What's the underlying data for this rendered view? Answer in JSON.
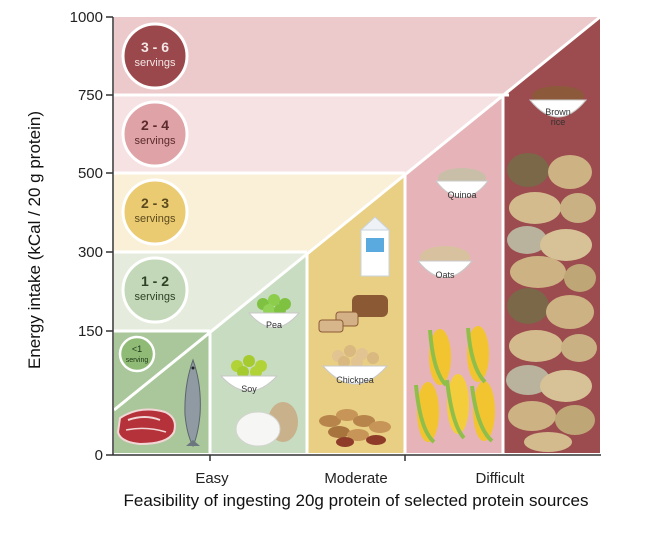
{
  "y_axis": {
    "title": "Energy intake (kCal / 20 g protein)",
    "ticks": [
      "1000",
      "750",
      "500",
      "300",
      "150",
      "0"
    ]
  },
  "x_axis": {
    "title": "Feasibility of ingesting 20g protein of selected protein sources",
    "categories": [
      "Easy",
      "Moderate",
      "Difficult"
    ]
  },
  "servings": [
    {
      "main": "3 - 6",
      "sub": "servings"
    },
    {
      "main": "2 - 4",
      "sub": "servings"
    },
    {
      "main": "2 - 3",
      "sub": "servings"
    },
    {
      "main": "1 - 2",
      "sub": "servings"
    },
    {
      "main": "<1",
      "sub": "serving"
    }
  ],
  "foods": {
    "pea": "Pea",
    "soy": "Soy",
    "chickpea": "Chickpea",
    "quinoa": "Quinoa",
    "oats": "Oats",
    "brown_rice_1": "Brown",
    "brown_rice_2": "rice"
  },
  "colors": {
    "band_top": "#ecc9cb",
    "band_750": "#f6e2e3",
    "band_500": "#faf0d8",
    "band_300": "#e5ecdd",
    "band_150": "#dfe9d5",
    "col_easy_low": "#a9c79a",
    "col_easy": "#c7dcc0",
    "col_moderate": "#e9cf84",
    "col_difficult": "#e6b4b8",
    "col_brown": "#9c4b4e"
  }
}
